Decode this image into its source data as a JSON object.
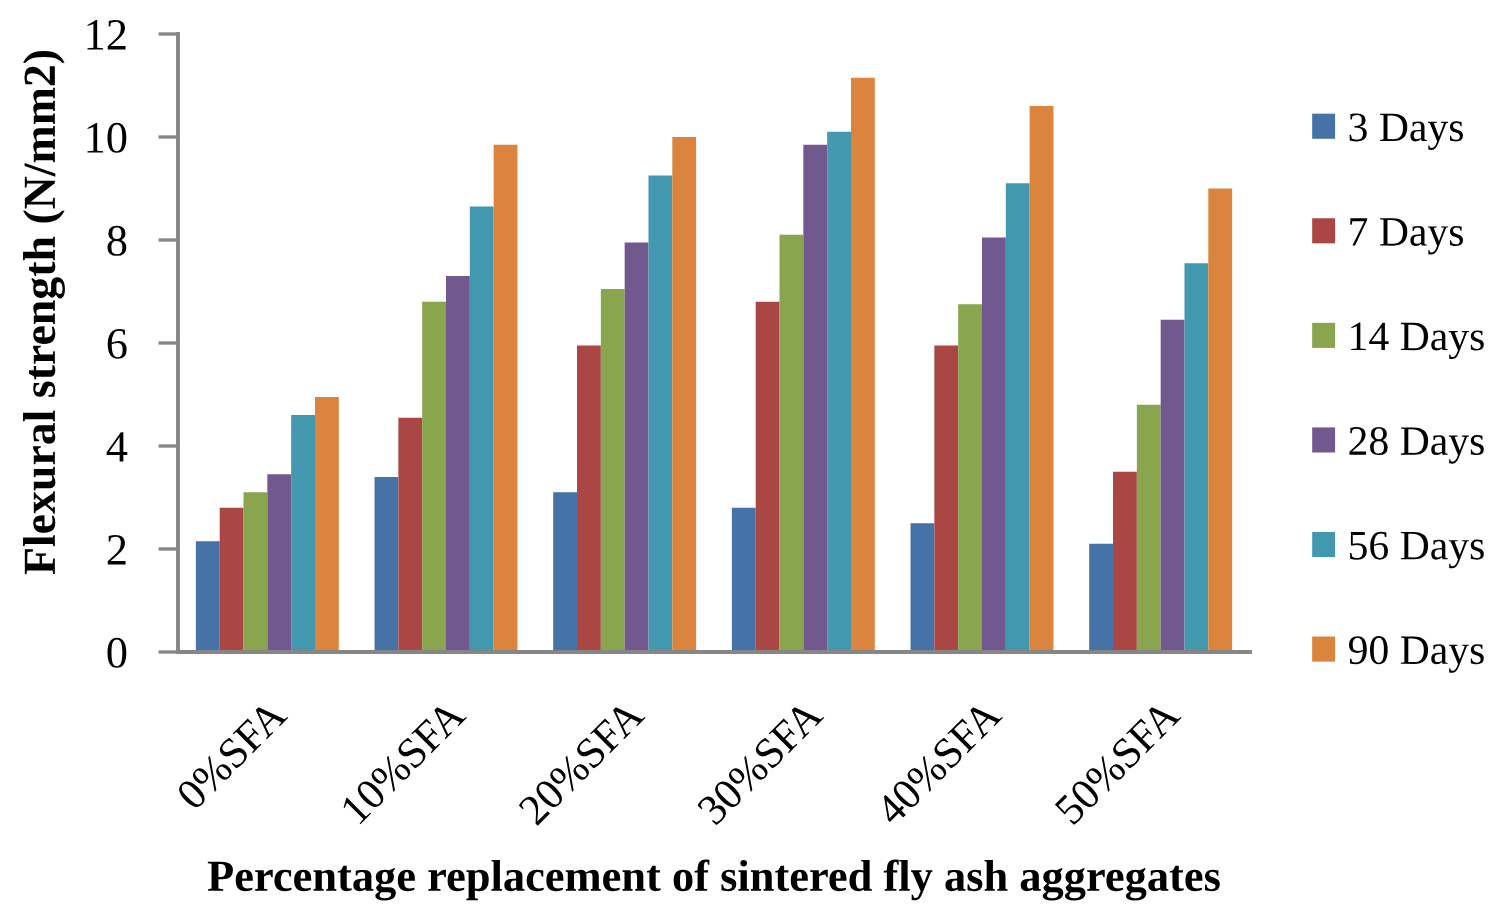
{
  "chart_data": {
    "type": "bar",
    "xlabel": "Percentage replacement of sintered fly ash aggregates",
    "ylabel": "Flexural strength (N/mm2)",
    "categories": [
      "0%SFA",
      "10%SFA",
      "20%SFA",
      "30%SFA",
      "40%SFA",
      "50%SFA"
    ],
    "series": [
      {
        "name": "3 Days",
        "color": "#4572a7",
        "values": [
          2.15,
          3.4,
          3.1,
          2.8,
          2.5,
          2.1
        ]
      },
      {
        "name": "7 Days",
        "color": "#aa4643",
        "values": [
          2.8,
          4.55,
          5.95,
          6.8,
          5.95,
          3.5
        ]
      },
      {
        "name": "14 Days",
        "color": "#89a54e",
        "values": [
          3.1,
          6.8,
          7.05,
          8.1,
          6.75,
          4.8
        ]
      },
      {
        "name": "28 Days",
        "color": "#71588f",
        "values": [
          3.45,
          7.3,
          7.95,
          9.85,
          8.05,
          6.45
        ]
      },
      {
        "name": "56 Days",
        "color": "#4198af",
        "values": [
          4.6,
          8.65,
          9.25,
          10.1,
          9.1,
          7.55
        ]
      },
      {
        "name": "90 Days",
        "color": "#db843d",
        "values": [
          4.95,
          9.85,
          10.0,
          11.15,
          10.6,
          9.0
        ]
      }
    ],
    "ylim": [
      0,
      12
    ],
    "yticks": [
      0,
      2,
      4,
      6,
      8,
      10,
      12
    ],
    "legend": "right"
  }
}
